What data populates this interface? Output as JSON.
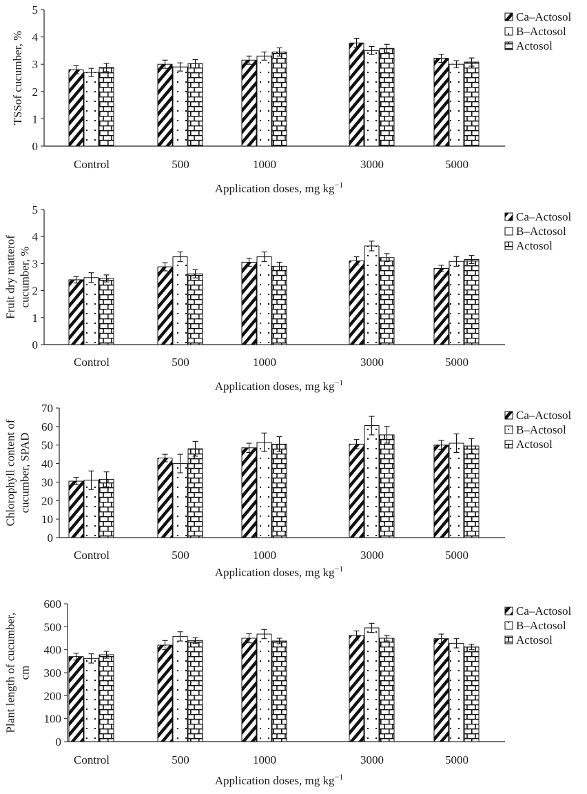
{
  "chart_data": [
    {
      "type": "bar",
      "categories": [
        "Control",
        "500",
        "1000",
        "3000",
        "5000"
      ],
      "xlabel": "Application doses, mg kg",
      "xlabel_sup": "−1",
      "ylabel_lines": [
        "TSSof cucumber, %"
      ],
      "ylim": [
        0,
        5
      ],
      "yticks": [
        "0",
        "1",
        "2",
        "3",
        "4",
        "5"
      ],
      "legend_position": "top-right",
      "series": [
        {
          "name": "Ca–Actosol",
          "values": [
            2.8,
            3.0,
            3.15,
            3.78,
            3.22
          ],
          "errors": [
            0.15,
            0.15,
            0.15,
            0.17,
            0.15
          ]
        },
        {
          "name": "B–Actosol",
          "values": [
            2.7,
            2.9,
            3.3,
            3.5,
            3.0
          ],
          "errors": [
            0.15,
            0.15,
            0.15,
            0.15,
            0.13
          ]
        },
        {
          "name": "Actosol",
          "values": [
            2.88,
            3.02,
            3.45,
            3.58,
            3.08
          ],
          "errors": [
            0.15,
            0.15,
            0.15,
            0.15,
            0.15
          ]
        }
      ]
    },
    {
      "type": "bar",
      "categories": [
        "Control",
        "500",
        "1000",
        "3000",
        "5000"
      ],
      "xlabel": "Application doses, mg kg",
      "xlabel_sup": "−1",
      "ylabel_lines": [
        "Fruit dry matterof",
        "cucumber, %"
      ],
      "ylim": [
        0,
        5
      ],
      "yticks": [
        "0",
        "1",
        "2",
        "3",
        "4",
        "5"
      ],
      "legend_position": "top-right",
      "series": [
        {
          "name": "Ca–Actosol",
          "values": [
            2.4,
            2.88,
            3.05,
            3.1,
            2.82
          ],
          "errors": [
            0.12,
            0.15,
            0.15,
            0.15,
            0.12
          ]
        },
        {
          "name": "B–Actosol",
          "values": [
            2.48,
            3.25,
            3.25,
            3.65,
            3.08
          ],
          "errors": [
            0.18,
            0.18,
            0.18,
            0.18,
            0.18
          ]
        },
        {
          "name": "Actosol",
          "values": [
            2.45,
            2.62,
            2.9,
            3.22,
            3.15
          ],
          "errors": [
            0.13,
            0.15,
            0.15,
            0.15,
            0.15
          ]
        }
      ]
    },
    {
      "type": "bar",
      "categories": [
        "Control",
        "500",
        "1000",
        "3000",
        "5000"
      ],
      "xlabel": "Application doses, mg kg",
      "xlabel_sup": "−1",
      "ylabel_lines": [
        "Chlorophyll content of",
        "cucumber, SPAD"
      ],
      "ylim": [
        0,
        70
      ],
      "yticks": [
        "0",
        "10",
        "20",
        "30",
        "40",
        "50",
        "60",
        "70"
      ],
      "legend_position": "top-right",
      "series": [
        {
          "name": "Ca–Actosol",
          "values": [
            30.5,
            43.0,
            48.5,
            50.5,
            50.0
          ],
          "errors": [
            2.0,
            2.0,
            2.5,
            2.5,
            2.5
          ]
        },
        {
          "name": "B–Actosol",
          "values": [
            31.0,
            40.0,
            51.5,
            60.5,
            51.0
          ],
          "errors": [
            5.0,
            5.0,
            5.0,
            5.0,
            5.0
          ]
        },
        {
          "name": "Actosol",
          "values": [
            31.5,
            48.0,
            50.5,
            55.5,
            49.5
          ],
          "errors": [
            4.0,
            4.0,
            4.0,
            4.5,
            4.0
          ]
        }
      ]
    },
    {
      "type": "bar",
      "categories": [
        "Control",
        "500",
        "1000",
        "3000",
        "5000"
      ],
      "xlabel": "Application doses, mg kg",
      "xlabel_sup": "−1",
      "ylabel_lines": [
        "Plant length of cucumber,",
        "cm"
      ],
      "ylim": [
        0,
        600
      ],
      "yticks": [
        "0",
        "100",
        "200",
        "300",
        "400",
        "500",
        "600"
      ],
      "legend_position": "top-right",
      "series": [
        {
          "name": "Ca–Actosol",
          "values": [
            370,
            420,
            450,
            462,
            448
          ],
          "errors": [
            15,
            20,
            20,
            20,
            20
          ]
        },
        {
          "name": "B–Actosol",
          "values": [
            362,
            458,
            468,
            495,
            428
          ],
          "errors": [
            20,
            20,
            20,
            20,
            20
          ]
        },
        {
          "name": "Actosol",
          "values": [
            378,
            440,
            438,
            450,
            412
          ],
          "errors": [
            15,
            12,
            12,
            12,
            12
          ]
        }
      ]
    }
  ]
}
